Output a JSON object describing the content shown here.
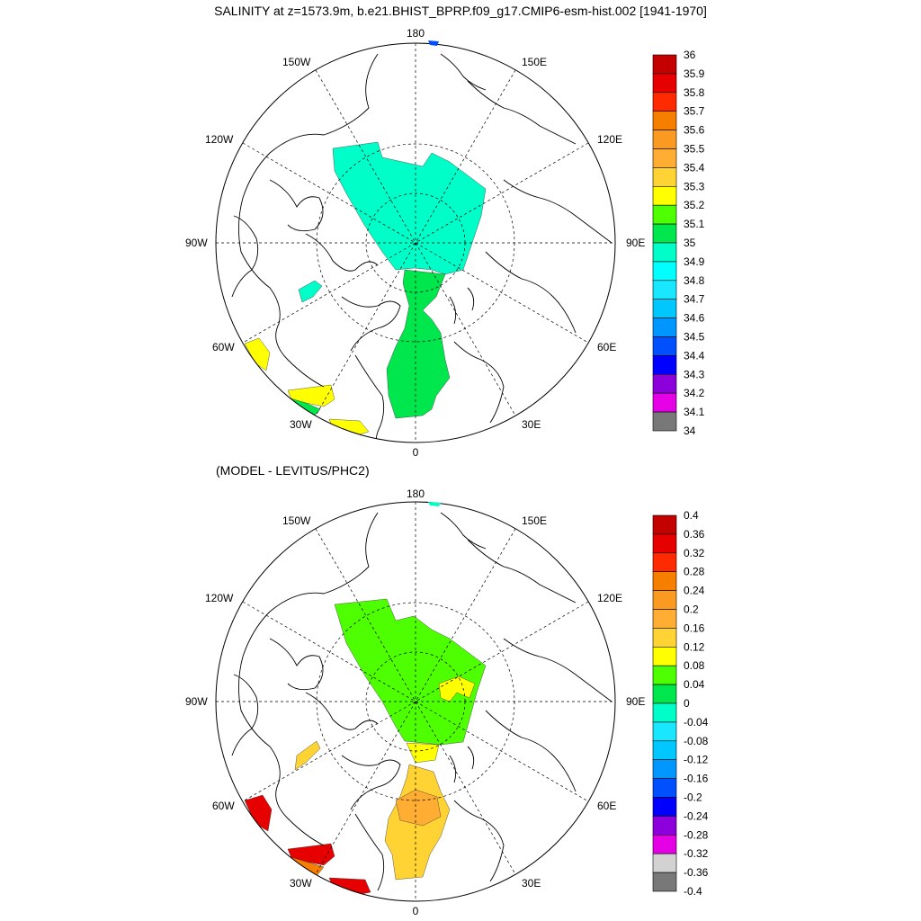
{
  "titles": {
    "top": "SALINITY at z=1573.9m, b.e21.BHIST_BPRP.f09_g17.CMIP6-esm-hist.002 [1941-1970]",
    "bottom": "(MODEL - LEVITUS/PHC2)"
  },
  "longitude_labels": [
    "180",
    "150E",
    "120E",
    "90E",
    "60E",
    "30E",
    "0",
    "30W",
    "60W",
    "90W",
    "120W",
    "150W"
  ],
  "colorbar_top": {
    "labels": [
      "36",
      "35.9",
      "35.8",
      "35.7",
      "35.6",
      "35.5",
      "35.4",
      "35.3",
      "35.2",
      "35.1",
      "35",
      "34.9",
      "34.8",
      "34.7",
      "34.6",
      "34.5",
      "34.4",
      "34.3",
      "34.2",
      "34.1",
      "34"
    ],
    "colors": [
      "#c40000",
      "#e60000",
      "#ff2a00",
      "#f77f00",
      "#fb9a20",
      "#ffad33",
      "#ffd333",
      "#ffff00",
      "#4dff00",
      "#00e64d",
      "#00ffc8",
      "#00ffff",
      "#19e6ff",
      "#00c8ff",
      "#0096ff",
      "#0050ff",
      "#0000ff",
      "#8c00dc",
      "#e600e6",
      "#d2d2d2"
    ]
  },
  "colorbar_bottom": {
    "labels": [
      "0.4",
      "0.36",
      "0.32",
      "0.28",
      "0.24",
      "0.2",
      "0.16",
      "0.12",
      "0.08",
      "0.04",
      "0",
      "-0.04",
      "-0.08",
      "-0.12",
      "-0.16",
      "-0.2",
      "-0.24",
      "-0.28",
      "-0.32",
      "-0.36",
      "-0.4"
    ],
    "colors": [
      "#c40000",
      "#e60000",
      "#ff2a00",
      "#f77f00",
      "#fb9a20",
      "#ffad33",
      "#ffd333",
      "#ffff00",
      "#4dff00",
      "#00e64d",
      "#00ffc8",
      "#19e6ff",
      "#00c8ff",
      "#0096ff",
      "#0050ff",
      "#0000ff",
      "#8c00dc",
      "#e600e6",
      "#d2d2d2",
      "#787878"
    ],
    "last_color": "#787878"
  },
  "fields": {
    "arctic_basin": "#00ffc8",
    "eurasian_basin": "#00e64d",
    "labrador_sea": "#00ffc8",
    "irminger_patch": "#ffff00",
    "north_atlantic": "#ffff00",
    "anom_arctic": "#4dff00",
    "anom_yellow": "#ffff00",
    "anom_nordic": "#ffd333",
    "anom_center": "#ffad33",
    "anom_red": "#e60000",
    "anom_orange": "#f77f00"
  }
}
